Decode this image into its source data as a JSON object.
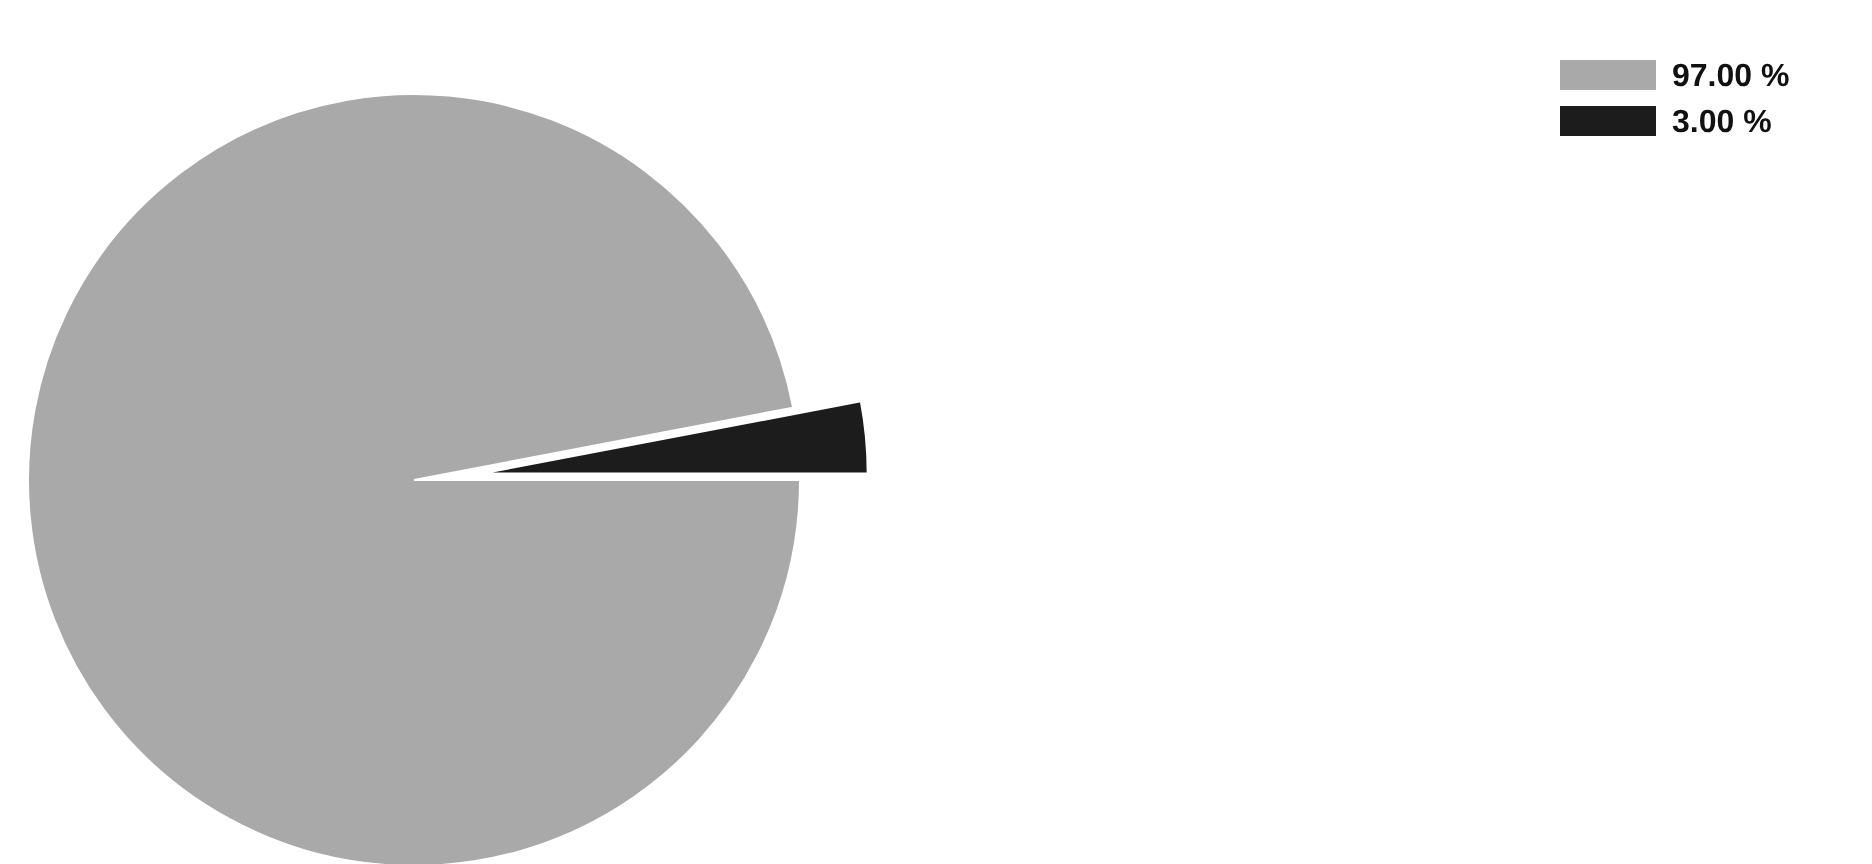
{
  "chart_data": {
    "type": "pie",
    "categories": [
      "97.00 %",
      "3.00 %"
    ],
    "values": [
      97,
      3
    ],
    "colors": [
      "#a9a9a9",
      "#1c1c1c"
    ],
    "legend": "top right"
  }
}
